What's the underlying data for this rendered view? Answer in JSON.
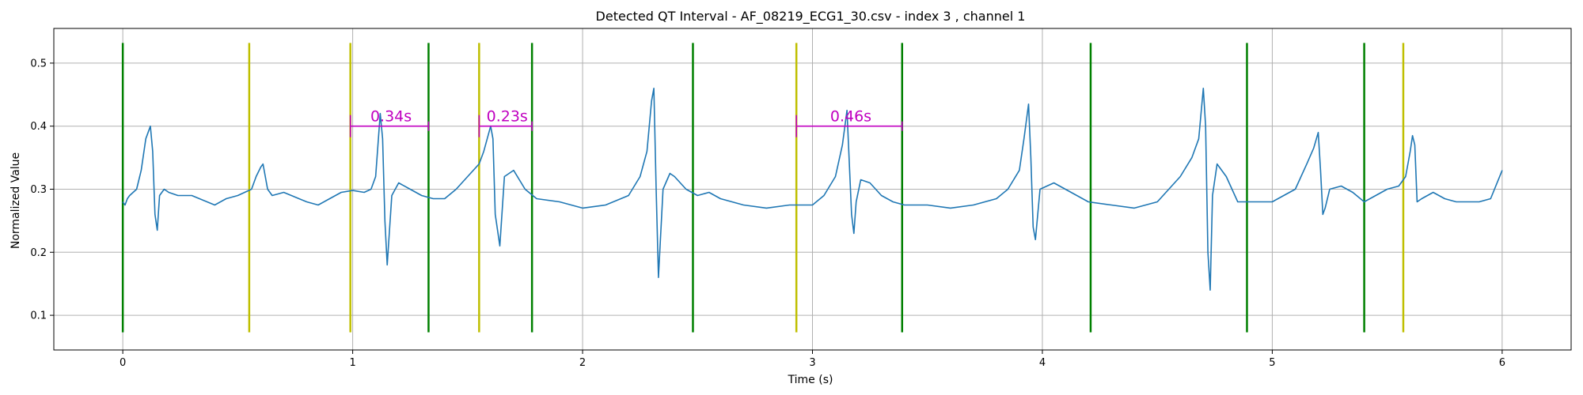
{
  "chart_data": {
    "type": "line",
    "title": "Detected QT Interval - AF_08219_ECG1_30.csv - index 3 , channel 1",
    "xlabel": "Time (s)",
    "ylabel": "Normalized Value",
    "xlim": [
      -0.3,
      6.3
    ],
    "ylim": [
      0.045,
      0.555
    ],
    "grid": true,
    "x_ticks": [
      0,
      1,
      2,
      3,
      4,
      5,
      6
    ],
    "y_ticks": [
      0.1,
      0.2,
      0.3,
      0.4,
      0.5
    ],
    "colors": {
      "signal": "#1f77b4",
      "q_marker": "#bfbf00",
      "t_marker": "#008000",
      "annotation": "#c000c0",
      "grid": "#b0b0b0"
    },
    "series": [
      {
        "role": "ecg-signal",
        "x": [
          0.0,
          0.01,
          0.02,
          0.03,
          0.06,
          0.08,
          0.1,
          0.12,
          0.13,
          0.14,
          0.15,
          0.16,
          0.18,
          0.2,
          0.24,
          0.3,
          0.4,
          0.45,
          0.5,
          0.56,
          0.58,
          0.6,
          0.61,
          0.63,
          0.65,
          0.7,
          0.8,
          0.85,
          0.9,
          0.95,
          1.0,
          1.05,
          1.08,
          1.1,
          1.12,
          1.13,
          1.14,
          1.15,
          1.17,
          1.2,
          1.25,
          1.3,
          1.35,
          1.4,
          1.45,
          1.5,
          1.55,
          1.57,
          1.6,
          1.61,
          1.62,
          1.64,
          1.66,
          1.7,
          1.75,
          1.8,
          1.9,
          2.0,
          2.1,
          2.2,
          2.25,
          2.28,
          2.3,
          2.31,
          2.32,
          2.33,
          2.35,
          2.38,
          2.4,
          2.45,
          2.5,
          2.55,
          2.6,
          2.7,
          2.8,
          2.9,
          3.0,
          3.05,
          3.1,
          3.13,
          3.15,
          3.17,
          3.18,
          3.19,
          3.21,
          3.25,
          3.3,
          3.35,
          3.4,
          3.5,
          3.6,
          3.7,
          3.8,
          3.85,
          3.9,
          3.92,
          3.94,
          3.95,
          3.96,
          3.97,
          3.99,
          4.05,
          4.1,
          4.2,
          4.3,
          4.4,
          4.5,
          4.6,
          4.65,
          4.68,
          4.7,
          4.71,
          4.72,
          4.73,
          4.74,
          4.76,
          4.8,
          4.85,
          4.9,
          5.0,
          5.05,
          5.1,
          5.15,
          5.18,
          5.2,
          5.21,
          5.22,
          5.23,
          5.25,
          5.3,
          5.35,
          5.4,
          5.45,
          5.5,
          5.55,
          5.58,
          5.6,
          5.61,
          5.62,
          5.63,
          5.65,
          5.7,
          5.75,
          5.8,
          5.85,
          5.9,
          5.95,
          6.0
        ],
        "values": [
          0.28,
          0.275,
          0.285,
          0.29,
          0.3,
          0.33,
          0.38,
          0.4,
          0.36,
          0.26,
          0.235,
          0.29,
          0.3,
          0.295,
          0.29,
          0.29,
          0.275,
          0.285,
          0.29,
          0.3,
          0.32,
          0.335,
          0.34,
          0.3,
          0.29,
          0.295,
          0.28,
          0.275,
          0.285,
          0.295,
          0.298,
          0.295,
          0.3,
          0.32,
          0.42,
          0.38,
          0.25,
          0.18,
          0.29,
          0.31,
          0.3,
          0.29,
          0.285,
          0.285,
          0.3,
          0.32,
          0.34,
          0.36,
          0.4,
          0.38,
          0.26,
          0.21,
          0.32,
          0.33,
          0.3,
          0.285,
          0.28,
          0.27,
          0.275,
          0.29,
          0.32,
          0.36,
          0.44,
          0.46,
          0.3,
          0.16,
          0.3,
          0.325,
          0.32,
          0.3,
          0.29,
          0.295,
          0.285,
          0.275,
          0.27,
          0.275,
          0.275,
          0.29,
          0.32,
          0.37,
          0.425,
          0.26,
          0.23,
          0.28,
          0.315,
          0.31,
          0.29,
          0.28,
          0.275,
          0.275,
          0.27,
          0.275,
          0.285,
          0.3,
          0.33,
          0.38,
          0.435,
          0.35,
          0.24,
          0.22,
          0.3,
          0.31,
          0.3,
          0.28,
          0.275,
          0.27,
          0.28,
          0.32,
          0.35,
          0.38,
          0.46,
          0.4,
          0.2,
          0.14,
          0.29,
          0.34,
          0.32,
          0.28,
          0.28,
          0.28,
          0.29,
          0.3,
          0.34,
          0.365,
          0.39,
          0.33,
          0.26,
          0.27,
          0.3,
          0.305,
          0.295,
          0.28,
          0.29,
          0.3,
          0.305,
          0.32,
          0.36,
          0.385,
          0.37,
          0.28,
          0.285,
          0.295,
          0.285,
          0.28,
          0.28,
          0.28,
          0.285,
          0.33
        ]
      }
    ],
    "q_markers": [
      0.55,
      0.99,
      1.55,
      2.93,
      5.57
    ],
    "t_markers": [
      0.0,
      1.33,
      1.78,
      2.48,
      3.39,
      4.21,
      4.89,
      5.4
    ],
    "marker_ymin": 0.073,
    "marker_ymax": 0.532,
    "intervals": [
      {
        "start": 0.99,
        "end": 1.33,
        "y": 0.4,
        "label": "0.34s"
      },
      {
        "start": 1.55,
        "end": 1.78,
        "y": 0.4,
        "label": "0.23s"
      },
      {
        "start": 2.93,
        "end": 3.39,
        "y": 0.4,
        "label": "0.46s"
      }
    ]
  }
}
